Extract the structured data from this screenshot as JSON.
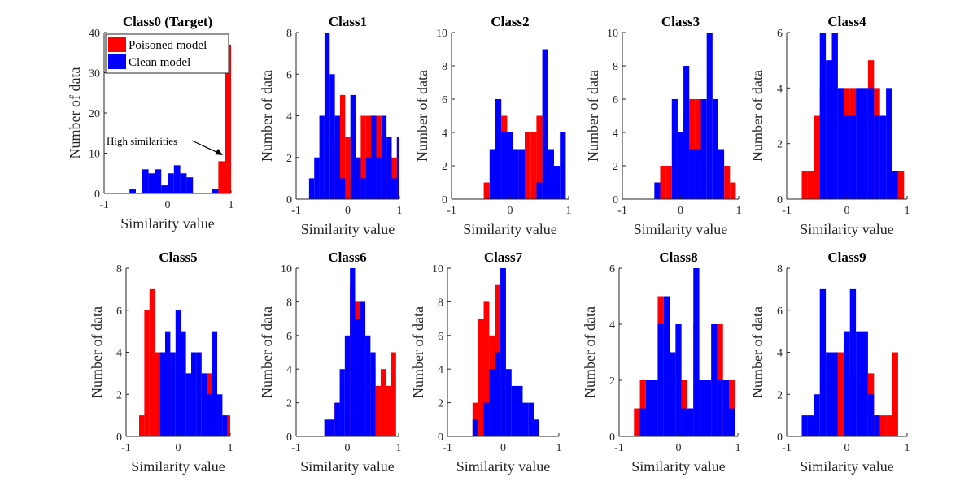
{
  "colors": {
    "poisoned": "#ff0000",
    "clean": "#0000ff",
    "axis": "#262626",
    "target_title": "#a2142f"
  },
  "chart_data": [
    {
      "type": "bar",
      "title": "Class0 (Target)",
      "xlabel": "Similarity value",
      "ylabel": "Number of data",
      "xlim": [
        -1,
        1
      ],
      "ylim": [
        0,
        40
      ],
      "xticks": [
        -1,
        0,
        1
      ],
      "yticks": [
        0,
        10,
        20,
        30,
        40
      ],
      "legend": {
        "position": "top-left",
        "entries": [
          "Poisoned model",
          "Clean model"
        ]
      },
      "annotation": "High similarities",
      "x": [
        -0.95,
        -0.85,
        -0.75,
        -0.65,
        -0.55,
        -0.45,
        -0.35,
        -0.25,
        -0.15,
        -0.05,
        0.05,
        0.15,
        0.25,
        0.35,
        0.45,
        0.55,
        0.65,
        0.75,
        0.85,
        0.95
      ],
      "series": [
        {
          "name": "Poisoned model",
          "values": [
            0,
            0,
            0,
            0,
            0,
            0,
            0,
            0,
            0,
            0,
            0,
            0,
            0,
            0,
            0,
            0,
            0,
            0,
            8,
            37
          ]
        },
        {
          "name": "Clean model",
          "values": [
            0,
            0,
            0,
            0,
            1,
            0,
            6,
            5,
            6,
            2,
            5,
            7,
            5,
            4,
            0,
            0,
            0,
            1,
            0,
            0
          ]
        }
      ]
    },
    {
      "type": "bar",
      "title": "Class1",
      "xlabel": "Similarity value",
      "ylabel": "Number of data",
      "xlim": [
        -1,
        1
      ],
      "ylim": [
        0,
        8
      ],
      "xticks": [
        -1,
        0,
        1
      ],
      "yticks": [
        0,
        2,
        4,
        6,
        8
      ],
      "x": [
        -0.8,
        -0.7,
        -0.6,
        -0.5,
        -0.4,
        -0.3,
        -0.2,
        -0.1,
        0.0,
        0.1,
        0.2,
        0.3,
        0.4,
        0.5,
        0.6,
        0.7,
        0.8,
        0.9,
        1.0
      ],
      "series": [
        {
          "name": "Poisoned model",
          "values": [
            0,
            0,
            0,
            0,
            0,
            0,
            3,
            5,
            3,
            1,
            2,
            4,
            4,
            4,
            4,
            3,
            2,
            2,
            3
          ]
        },
        {
          "name": "Clean model",
          "values": [
            0,
            1,
            2,
            4,
            8,
            6,
            4,
            1,
            0,
            5,
            2,
            1,
            2,
            4,
            2,
            4,
            3,
            1,
            3
          ]
        }
      ]
    },
    {
      "type": "bar",
      "title": "Class2",
      "xlabel": "Similarity value",
      "ylabel": "Number of data",
      "xlim": [
        -1,
        1
      ],
      "ylim": [
        0,
        10
      ],
      "xticks": [
        -1,
        0,
        1
      ],
      "yticks": [
        0,
        2,
        4,
        6,
        8,
        10
      ],
      "x": [
        -0.9,
        -0.8,
        -0.7,
        -0.6,
        -0.5,
        -0.4,
        -0.3,
        -0.2,
        -0.1,
        0.0,
        0.1,
        0.2,
        0.3,
        0.4,
        0.5,
        0.6,
        0.7,
        0.8,
        0.9
      ],
      "series": [
        {
          "name": "Poisoned model",
          "values": [
            0,
            0,
            0,
            0,
            0,
            1,
            0,
            0,
            5,
            4,
            0,
            3,
            4,
            4,
            5,
            0,
            0,
            0,
            0
          ]
        },
        {
          "name": "Clean model",
          "values": [
            0,
            0,
            0,
            0,
            0,
            0,
            3,
            6,
            4,
            4,
            3,
            3,
            0,
            0,
            1,
            9,
            3,
            2,
            4
          ]
        }
      ]
    },
    {
      "type": "bar",
      "title": "Class3",
      "xlabel": "Similarity value",
      "ylabel": "Number of data",
      "xlim": [
        -1,
        1
      ],
      "ylim": [
        0,
        10
      ],
      "xticks": [
        -1,
        0,
        1
      ],
      "yticks": [
        0,
        2,
        4,
        6,
        8,
        10
      ],
      "x": [
        -0.9,
        -0.8,
        -0.7,
        -0.6,
        -0.5,
        -0.4,
        -0.3,
        -0.2,
        -0.1,
        0.0,
        0.1,
        0.2,
        0.3,
        0.4,
        0.5,
        0.6,
        0.7,
        0.8,
        0.9
      ],
      "series": [
        {
          "name": "Poisoned model",
          "values": [
            0,
            0,
            0,
            0,
            0,
            0,
            2,
            2,
            0,
            3,
            5,
            6,
            6,
            0,
            0,
            0,
            0,
            2,
            1
          ]
        },
        {
          "name": "Clean model",
          "values": [
            0,
            0,
            0,
            0,
            0,
            1,
            0,
            0,
            6,
            4,
            8,
            3,
            3,
            6,
            10,
            6,
            3,
            0,
            0
          ]
        }
      ]
    },
    {
      "type": "bar",
      "title": "Class4",
      "xlabel": "Similarity value",
      "ylabel": "Number of data",
      "xlim": [
        -1,
        1
      ],
      "ylim": [
        0,
        6
      ],
      "xticks": [
        -1,
        0,
        1
      ],
      "yticks": [
        0,
        2,
        4,
        6
      ],
      "x": [
        -0.9,
        -0.8,
        -0.7,
        -0.6,
        -0.5,
        -0.4,
        -0.3,
        -0.2,
        -0.1,
        0.0,
        0.1,
        0.2,
        0.3,
        0.4,
        0.5,
        0.6,
        0.7,
        0.8,
        0.9
      ],
      "series": [
        {
          "name": "Poisoned model",
          "values": [
            0,
            0,
            1,
            1,
            3,
            4,
            0,
            0,
            0,
            4,
            4,
            0,
            0,
            5,
            4,
            0,
            0,
            0,
            1
          ]
        },
        {
          "name": "Clean model",
          "values": [
            0,
            0,
            0,
            0,
            0,
            6,
            5,
            6,
            4,
            3,
            3,
            4,
            4,
            4,
            3,
            3,
            4,
            1,
            0
          ]
        }
      ]
    },
    {
      "type": "bar",
      "title": "Class5",
      "xlabel": "Similarity value",
      "ylabel": "Number of data",
      "xlim": [
        -1,
        1
      ],
      "ylim": [
        0,
        8
      ],
      "xticks": [
        -1,
        0,
        1
      ],
      "yticks": [
        0,
        2,
        4,
        6,
        8
      ],
      "x": [
        -0.9,
        -0.8,
        -0.7,
        -0.6,
        -0.5,
        -0.4,
        -0.3,
        -0.2,
        -0.1,
        0.0,
        0.1,
        0.2,
        0.3,
        0.4,
        0.5,
        0.6,
        0.7,
        0.8,
        0.9,
        1.0
      ],
      "series": [
        {
          "name": "Poisoned model",
          "values": [
            0,
            0,
            1,
            6,
            7,
            4,
            0,
            4,
            0,
            0,
            0,
            0,
            0,
            0,
            0,
            3,
            0,
            0,
            0,
            1
          ]
        },
        {
          "name": "Clean model",
          "values": [
            0,
            0,
            0,
            0,
            0,
            0,
            4,
            5,
            4,
            6,
            5,
            3,
            4,
            4,
            3,
            2,
            5,
            2,
            1,
            0
          ]
        }
      ]
    },
    {
      "type": "bar",
      "title": "Class6",
      "xlabel": "Similarity value",
      "ylabel": "Number of data",
      "xlim": [
        -1,
        1
      ],
      "ylim": [
        0,
        10
      ],
      "xticks": [
        -1,
        0,
        1
      ],
      "yticks": [
        0,
        2,
        4,
        6,
        8,
        10
      ],
      "x": [
        -0.9,
        -0.8,
        -0.7,
        -0.6,
        -0.5,
        -0.4,
        -0.3,
        -0.2,
        -0.1,
        0.0,
        0.1,
        0.2,
        0.3,
        0.4,
        0.5,
        0.6,
        0.7,
        0.8,
        0.9
      ],
      "series": [
        {
          "name": "Poisoned model",
          "values": [
            0,
            0,
            0,
            0,
            0,
            0,
            0,
            2,
            0,
            0,
            9,
            8,
            0,
            0,
            4,
            3,
            4,
            3,
            5
          ]
        },
        {
          "name": "Clean model",
          "values": [
            0,
            0,
            0,
            0,
            0,
            1,
            1,
            2,
            4,
            6,
            10,
            7,
            8,
            6,
            5,
            0,
            0,
            0,
            0
          ]
        }
      ]
    },
    {
      "type": "bar",
      "title": "Class7",
      "xlabel": "Similarity value",
      "ylabel": "Number of data",
      "xlim": [
        -1,
        1
      ],
      "ylim": [
        0,
        10
      ],
      "xticks": [
        -1,
        0,
        1
      ],
      "yticks": [
        0,
        2,
        4,
        6,
        8,
        10
      ],
      "x": [
        -0.9,
        -0.8,
        -0.7,
        -0.6,
        -0.5,
        -0.4,
        -0.3,
        -0.2,
        -0.1,
        0.0,
        0.1,
        0.2,
        0.3,
        0.4,
        0.5,
        0.6,
        0.7,
        0.8,
        0.9
      ],
      "series": [
        {
          "name": "Poisoned model",
          "values": [
            0,
            0,
            0,
            0,
            2,
            7,
            8,
            6,
            9,
            0,
            0,
            0,
            0,
            0,
            0,
            0,
            0,
            0,
            0
          ]
        },
        {
          "name": "Clean model",
          "values": [
            0,
            0,
            0,
            0,
            1,
            0,
            2,
            4,
            5,
            10,
            4,
            3,
            3,
            2,
            2,
            1,
            0,
            0,
            0
          ]
        }
      ]
    },
    {
      "type": "bar",
      "title": "Class8",
      "xlabel": "Similarity value",
      "ylabel": "Number of data",
      "xlim": [
        -1,
        1
      ],
      "ylim": [
        0,
        6
      ],
      "xticks": [
        -1,
        0,
        1
      ],
      "yticks": [
        0,
        2,
        4,
        6
      ],
      "x": [
        -0.9,
        -0.8,
        -0.7,
        -0.6,
        -0.5,
        -0.4,
        -0.3,
        -0.2,
        -0.1,
        0.0,
        0.1,
        0.2,
        0.3,
        0.4,
        0.5,
        0.6,
        0.7,
        0.8,
        0.9
      ],
      "series": [
        {
          "name": "Poisoned model",
          "values": [
            0,
            0,
            1,
            2,
            0,
            0,
            5,
            0,
            0,
            2,
            2,
            0,
            4,
            0,
            2,
            0,
            4,
            0,
            2
          ]
        },
        {
          "name": "Clean model",
          "values": [
            0,
            0,
            0,
            1,
            2,
            2,
            4,
            5,
            3,
            4,
            1,
            1,
            6,
            2,
            2,
            4,
            2,
            2,
            1
          ]
        }
      ]
    },
    {
      "type": "bar",
      "title": "Class9",
      "xlabel": "Similarity value",
      "ylabel": "Number of data",
      "xlim": [
        -1,
        1
      ],
      "ylim": [
        0,
        8
      ],
      "xticks": [
        -1,
        0,
        1
      ],
      "yticks": [
        0,
        2,
        4,
        6,
        8
      ],
      "x": [
        -0.9,
        -0.8,
        -0.7,
        -0.6,
        -0.5,
        -0.4,
        -0.3,
        -0.2,
        -0.1,
        0.0,
        0.1,
        0.2,
        0.3,
        0.4,
        0.5,
        0.6,
        0.7,
        0.8,
        0.9
      ],
      "series": [
        {
          "name": "Poisoned model",
          "values": [
            0,
            0,
            0,
            0,
            0,
            0,
            0,
            0,
            4,
            5,
            3,
            0,
            0,
            3,
            1,
            1,
            1,
            4,
            0
          ]
        },
        {
          "name": "Clean model",
          "values": [
            0,
            0,
            1,
            1,
            2,
            7,
            4,
            4,
            0,
            5,
            7,
            5,
            5,
            2,
            1,
            0,
            0,
            0,
            0
          ]
        }
      ]
    }
  ]
}
